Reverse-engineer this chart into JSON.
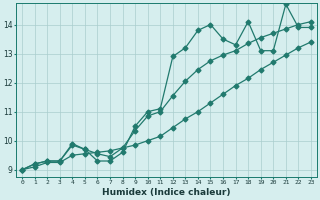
{
  "xlabel": "Humidex (Indice chaleur)",
  "bg_color": "#d6eeee",
  "grid_color": "#aacece",
  "line_color": "#217a6e",
  "x": [
    0,
    1,
    2,
    3,
    4,
    5,
    6,
    7,
    8,
    9,
    10,
    11,
    12,
    13,
    14,
    15,
    16,
    17,
    18,
    19,
    20,
    21,
    22,
    23
  ],
  "line_jagged": [
    9.0,
    9.2,
    9.3,
    9.3,
    9.9,
    9.7,
    9.3,
    9.3,
    9.6,
    10.5,
    11.0,
    11.1,
    12.9,
    13.2,
    13.8,
    14.0,
    13.5,
    13.3,
    14.1,
    13.1,
    13.1,
    14.7,
    13.9,
    13.9
  ],
  "line_mid": [
    9.0,
    9.2,
    9.3,
    9.3,
    9.85,
    9.7,
    9.55,
    9.45,
    9.75,
    10.35,
    10.85,
    11.0,
    11.55,
    12.05,
    12.45,
    12.75,
    12.95,
    13.1,
    13.35,
    13.55,
    13.7,
    13.85,
    14.0,
    14.1
  ],
  "line_bot": [
    9.0,
    9.1,
    9.25,
    9.25,
    9.5,
    9.55,
    9.6,
    9.65,
    9.75,
    9.85,
    10.0,
    10.15,
    10.45,
    10.75,
    11.0,
    11.3,
    11.6,
    11.9,
    12.15,
    12.45,
    12.7,
    12.95,
    13.2,
    13.4
  ],
  "ylim": [
    8.75,
    14.75
  ],
  "xlim": [
    -0.5,
    23.5
  ],
  "yticks": [
    9,
    10,
    11,
    12,
    13,
    14
  ],
  "xticks": [
    0,
    1,
    2,
    3,
    4,
    5,
    6,
    7,
    8,
    9,
    10,
    11,
    12,
    13,
    14,
    15,
    16,
    17,
    18,
    19,
    20,
    21,
    22,
    23
  ]
}
